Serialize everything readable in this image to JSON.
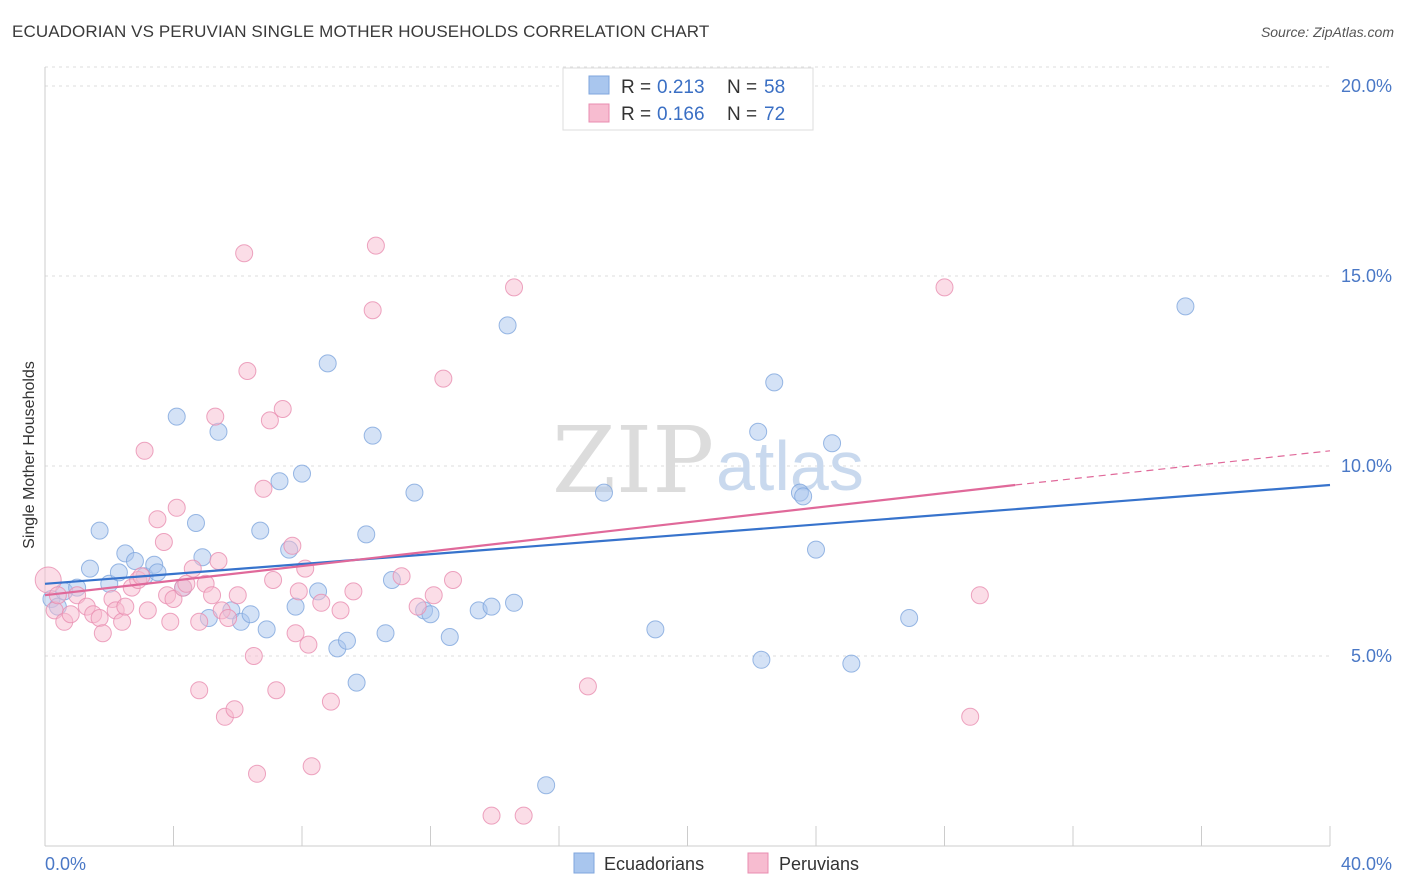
{
  "header": {
    "title": "ECUADORIAN VS PERUVIAN SINGLE MOTHER HOUSEHOLDS CORRELATION CHART",
    "source": "Source: ZipAtlas.com"
  },
  "watermark": {
    "zip": "ZIP",
    "atlas": "atlas"
  },
  "legend": {
    "r_label": "R =",
    "n_label": "N =",
    "items": [
      {
        "r": "0.213",
        "n": "58",
        "color": "#a9c6ee",
        "stroke": "#7fa6dd"
      },
      {
        "r": "0.166",
        "n": "72",
        "color": "#f7bcd0",
        "stroke": "#e98db0"
      }
    ]
  },
  "bottom_legend": [
    {
      "label": "Ecuadorians",
      "color": "#a9c6ee",
      "stroke": "#7fa6dd"
    },
    {
      "label": "Peruvians",
      "color": "#f7bcd0",
      "stroke": "#e98db0"
    }
  ],
  "chart_data": {
    "type": "scatter",
    "title": "ECUADORIAN VS PERUVIAN SINGLE MOTHER HOUSEHOLDS CORRELATION CHART",
    "xlabel": "",
    "ylabel": "Single Mother Households",
    "xlim": [
      0,
      40
    ],
    "ylim": [
      0,
      20.5
    ],
    "x_tick_labels": [
      "0.0%",
      "40.0%"
    ],
    "y_ticks": [
      5,
      10,
      15,
      20
    ],
    "y_tick_labels": [
      "5.0%",
      "10.0%",
      "15.0%",
      "20.0%"
    ],
    "grid": true,
    "legend_position": "top-center",
    "series": [
      {
        "name": "Ecuadorians",
        "color": "#6d9bdc",
        "trend": {
          "x": [
            0,
            40
          ],
          "y": [
            6.9,
            9.5
          ],
          "color": "#3773cc"
        },
        "points": [
          [
            0.2,
            6.5
          ],
          [
            0.4,
            6.3
          ],
          [
            0.6,
            6.7
          ],
          [
            1.0,
            6.8
          ],
          [
            1.4,
            7.3
          ],
          [
            1.7,
            8.3
          ],
          [
            2.0,
            6.9
          ],
          [
            2.3,
            7.2
          ],
          [
            2.5,
            7.7
          ],
          [
            2.8,
            7.5
          ],
          [
            3.1,
            7.1
          ],
          [
            3.4,
            7.4
          ],
          [
            3.5,
            7.2
          ],
          [
            4.1,
            11.3
          ],
          [
            4.3,
            6.8
          ],
          [
            4.7,
            8.5
          ],
          [
            4.9,
            7.6
          ],
          [
            5.1,
            6.0
          ],
          [
            5.4,
            10.9
          ],
          [
            5.8,
            6.2
          ],
          [
            6.1,
            5.9
          ],
          [
            6.4,
            6.1
          ],
          [
            6.7,
            8.3
          ],
          [
            6.9,
            5.7
          ],
          [
            7.3,
            9.6
          ],
          [
            7.6,
            7.8
          ],
          [
            7.8,
            6.3
          ],
          [
            8.0,
            9.8
          ],
          [
            8.5,
            6.7
          ],
          [
            8.8,
            12.7
          ],
          [
            9.1,
            5.2
          ],
          [
            9.4,
            5.4
          ],
          [
            9.7,
            4.3
          ],
          [
            10.0,
            8.2
          ],
          [
            10.2,
            10.8
          ],
          [
            10.6,
            5.6
          ],
          [
            10.8,
            7.0
          ],
          [
            11.5,
            9.3
          ],
          [
            11.8,
            6.2
          ],
          [
            12.0,
            6.1
          ],
          [
            12.6,
            5.5
          ],
          [
            13.5,
            6.2
          ],
          [
            13.9,
            6.3
          ],
          [
            14.4,
            13.7
          ],
          [
            14.6,
            6.4
          ],
          [
            15.6,
            1.6
          ],
          [
            17.4,
            9.3
          ],
          [
            19.0,
            5.7
          ],
          [
            22.2,
            10.9
          ],
          [
            22.3,
            4.9
          ],
          [
            22.7,
            12.2
          ],
          [
            23.5,
            9.3
          ],
          [
            23.6,
            9.2
          ],
          [
            24.0,
            7.8
          ],
          [
            24.5,
            10.6
          ],
          [
            25.1,
            4.8
          ],
          [
            26.9,
            6.0
          ],
          [
            35.5,
            14.2
          ]
        ]
      },
      {
        "name": "Peruvians",
        "color": "#ee8fb2",
        "trend": {
          "x": [
            0,
            30.2
          ],
          "y": [
            6.6,
            9.5
          ],
          "color": "#e0699a",
          "dashed_extension": {
            "x": [
              30.2,
              40
            ],
            "y": [
              9.5,
              10.4
            ]
          }
        },
        "points": [
          [
            0.1,
            7.0
          ],
          [
            0.3,
            6.2
          ],
          [
            0.4,
            6.6
          ],
          [
            0.6,
            5.9
          ],
          [
            0.8,
            6.1
          ],
          [
            1.0,
            6.6
          ],
          [
            1.3,
            6.3
          ],
          [
            1.5,
            6.1
          ],
          [
            1.7,
            6.0
          ],
          [
            1.8,
            5.6
          ],
          [
            2.1,
            6.5
          ],
          [
            2.2,
            6.2
          ],
          [
            2.4,
            5.9
          ],
          [
            2.5,
            6.3
          ],
          [
            2.7,
            6.8
          ],
          [
            2.9,
            7.0
          ],
          [
            3.0,
            7.1
          ],
          [
            3.1,
            10.4
          ],
          [
            3.2,
            6.2
          ],
          [
            3.5,
            8.6
          ],
          [
            3.7,
            8.0
          ],
          [
            3.8,
            6.6
          ],
          [
            3.9,
            5.9
          ],
          [
            4.0,
            6.5
          ],
          [
            4.1,
            8.9
          ],
          [
            4.3,
            6.8
          ],
          [
            4.4,
            6.9
          ],
          [
            4.6,
            7.3
          ],
          [
            4.8,
            5.9
          ],
          [
            4.8,
            4.1
          ],
          [
            5.0,
            6.9
          ],
          [
            5.2,
            6.6
          ],
          [
            5.3,
            11.3
          ],
          [
            5.4,
            7.5
          ],
          [
            5.5,
            6.2
          ],
          [
            5.6,
            3.4
          ],
          [
            5.7,
            6.0
          ],
          [
            5.9,
            3.6
          ],
          [
            6.0,
            6.6
          ],
          [
            6.2,
            15.6
          ],
          [
            6.3,
            12.5
          ],
          [
            6.5,
            5.0
          ],
          [
            6.6,
            1.9
          ],
          [
            6.8,
            9.4
          ],
          [
            7.0,
            11.2
          ],
          [
            7.1,
            7.0
          ],
          [
            7.2,
            4.1
          ],
          [
            7.4,
            11.5
          ],
          [
            7.7,
            7.9
          ],
          [
            7.8,
            5.6
          ],
          [
            7.9,
            6.7
          ],
          [
            8.1,
            7.3
          ],
          [
            8.2,
            5.3
          ],
          [
            8.3,
            2.1
          ],
          [
            8.6,
            6.4
          ],
          [
            8.9,
            3.8
          ],
          [
            9.2,
            6.2
          ],
          [
            9.6,
            6.7
          ],
          [
            10.2,
            14.1
          ],
          [
            10.3,
            15.8
          ],
          [
            11.1,
            7.1
          ],
          [
            11.6,
            6.3
          ],
          [
            12.1,
            6.6
          ],
          [
            12.4,
            12.3
          ],
          [
            12.7,
            7.0
          ],
          [
            13.9,
            0.8
          ],
          [
            14.6,
            14.7
          ],
          [
            14.9,
            0.8
          ],
          [
            16.9,
            4.2
          ],
          [
            28.0,
            14.7
          ],
          [
            28.8,
            3.4
          ],
          [
            29.1,
            6.6
          ]
        ]
      }
    ]
  }
}
